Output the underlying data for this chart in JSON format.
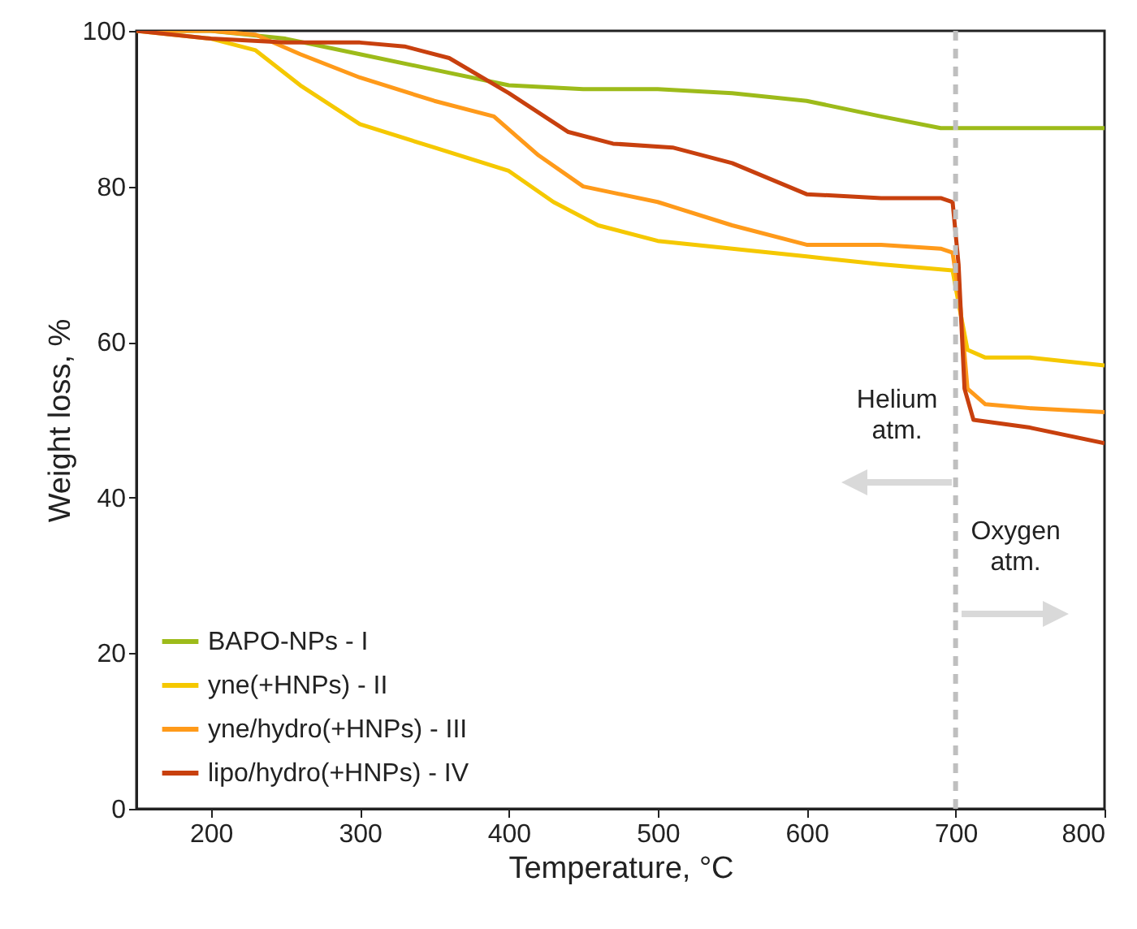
{
  "chart_data": {
    "type": "line",
    "xlabel": "Temperature, °C",
    "ylabel": "Weight loss, %",
    "xlim": [
      150,
      800
    ],
    "xticks": [
      200,
      300,
      400,
      500,
      600,
      700,
      800
    ],
    "ylim": [
      0,
      100
    ],
    "yticks": [
      0,
      20,
      40,
      60,
      80,
      100
    ],
    "grid": false,
    "legend": "bottom left",
    "line_style": "solid",
    "marker": "none",
    "annotations": [
      "Helium atm.",
      "Oxygen atm."
    ],
    "ref_lines": [
      {
        "axis": "x",
        "value": 700,
        "label": null,
        "color": "#bfbfbf",
        "line_style": "dashed"
      }
    ],
    "series": [
      {
        "name": "BAPO-NPs - I",
        "color": "#9dbb1a",
        "x": [
          150,
          200,
          250,
          300,
          350,
          400,
          450,
          500,
          550,
          600,
          650,
          690,
          700,
          800
        ],
        "values": [
          100,
          100,
          99,
          97,
          95,
          93,
          92.5,
          92.5,
          92,
          91,
          89,
          87.5,
          87.5,
          87.5
        ]
      },
      {
        "name": "yne(+HNPs) - II",
        "color": "#f5c800",
        "x": [
          150,
          200,
          230,
          260,
          300,
          350,
          400,
          430,
          460,
          500,
          550,
          600,
          650,
          698,
          702,
          708,
          720,
          750,
          800
        ],
        "values": [
          100,
          99,
          97.5,
          93,
          88,
          85,
          82,
          78,
          75,
          73,
          72,
          71,
          70,
          69.2,
          65,
          59,
          58,
          58,
          57
        ]
      },
      {
        "name": "yne/hydro(+HNPs) - III",
        "color": "#ff9a1a",
        "x": [
          150,
          200,
          230,
          260,
          300,
          350,
          390,
          420,
          450,
          500,
          550,
          600,
          650,
          690,
          698,
          703,
          708,
          720,
          750,
          800
        ],
        "values": [
          100,
          100,
          99.5,
          97,
          94,
          91,
          89,
          84,
          80,
          78,
          75,
          72.5,
          72.5,
          72,
          71.5,
          65,
          54,
          52,
          51.5,
          51
        ]
      },
      {
        "name": "lipo/hydro(+HNPs) - IV",
        "color": "#c8400e",
        "x": [
          150,
          200,
          250,
          300,
          330,
          360,
          400,
          440,
          470,
          510,
          550,
          600,
          650,
          690,
          698,
          702,
          706,
          712,
          750,
          800
        ],
        "values": [
          100,
          99,
          98.5,
          98.5,
          98,
          96.5,
          92,
          87,
          85.5,
          85,
          83,
          79,
          78.5,
          78.5,
          78,
          70,
          54,
          50,
          49,
          47
        ]
      }
    ]
  }
}
